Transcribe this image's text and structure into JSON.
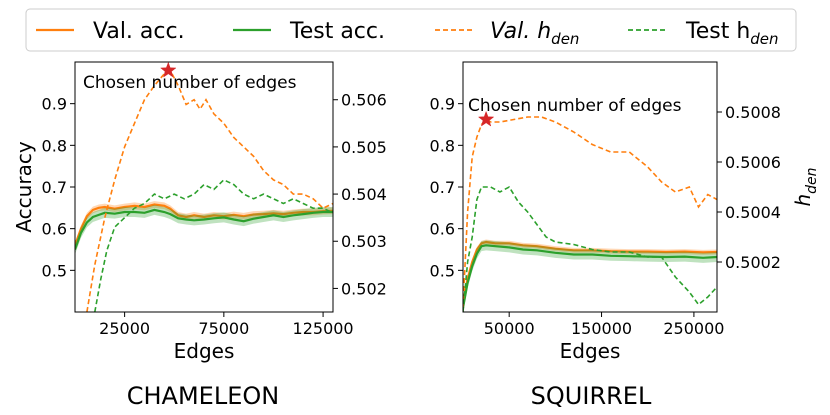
{
  "legend": {
    "items": [
      {
        "label": "Val. acc.",
        "color": "#ff7f0e",
        "dash": "solid"
      },
      {
        "label": "Test acc.",
        "color": "#2ca02c",
        "dash": "solid"
      },
      {
        "label": "Val. h",
        "sub": "den",
        "color": "#ff7f0e",
        "dash": "dashed"
      },
      {
        "label": "Test h",
        "sub": "den",
        "color": "#2ca02c",
        "dash": "dashed"
      }
    ]
  },
  "chart_data": [
    {
      "type": "line",
      "dataset_title": "CHAMELEON",
      "xlabel": "Edges",
      "ylabel": "Accuracy",
      "xlim": [
        0,
        130000
      ],
      "ylim_left": [
        0.4,
        1.0
      ],
      "ylim_right": [
        0.5015,
        0.5068
      ],
      "xticks": [
        25000,
        75000,
        125000
      ],
      "xtick_labels": [
        "25000",
        "75000",
        "125000"
      ],
      "yticks_left": [
        0.5,
        0.6,
        0.7,
        0.8,
        0.9
      ],
      "ytick_labels_left": [
        "0.5",
        "0.6",
        "0.7",
        "0.8",
        "0.9"
      ],
      "yticks_right": [
        0.502,
        0.503,
        0.504,
        0.505,
        0.506
      ],
      "ytick_labels_right": [
        "0.502",
        "0.503",
        "0.504",
        "0.505",
        "0.506"
      ],
      "annotation": "Chosen number of edges",
      "chosen_x": 47000,
      "chosen_y_right": 0.50662,
      "series": [
        {
          "name": "Val. acc.",
          "axis": "left",
          "color": "#ff7f0e",
          "style": "solid",
          "band": 0.008,
          "x": [
            0,
            3000,
            6000,
            9000,
            12000,
            15000,
            20000,
            25000,
            30000,
            35000,
            40000,
            45000,
            48000,
            52000,
            56000,
            60000,
            65000,
            70000,
            75000,
            80000,
            85000,
            90000,
            95000,
            100000,
            105000,
            110000,
            115000,
            120000,
            125000,
            130000
          ],
          "y": [
            0.56,
            0.6,
            0.63,
            0.645,
            0.65,
            0.652,
            0.648,
            0.652,
            0.655,
            0.652,
            0.658,
            0.655,
            0.648,
            0.632,
            0.628,
            0.632,
            0.628,
            0.632,
            0.63,
            0.633,
            0.63,
            0.634,
            0.635,
            0.637,
            0.635,
            0.638,
            0.64,
            0.64,
            0.642,
            0.643
          ]
        },
        {
          "name": "Test acc.",
          "axis": "left",
          "color": "#2ca02c",
          "style": "solid",
          "band": 0.012,
          "x": [
            0,
            3000,
            6000,
            9000,
            12000,
            15000,
            20000,
            25000,
            30000,
            35000,
            40000,
            45000,
            48000,
            52000,
            56000,
            60000,
            65000,
            70000,
            75000,
            80000,
            85000,
            90000,
            95000,
            100000,
            105000,
            110000,
            115000,
            120000,
            125000,
            130000
          ],
          "y": [
            0.55,
            0.59,
            0.615,
            0.628,
            0.633,
            0.638,
            0.636,
            0.64,
            0.64,
            0.638,
            0.645,
            0.64,
            0.635,
            0.625,
            0.622,
            0.62,
            0.622,
            0.625,
            0.627,
            0.622,
            0.618,
            0.624,
            0.628,
            0.632,
            0.628,
            0.632,
            0.635,
            0.638,
            0.64,
            0.64
          ]
        },
        {
          "name": "Val. h_den",
          "axis": "right",
          "color": "#ff7f0e",
          "style": "dashed",
          "x": [
            6000,
            10000,
            15000,
            20000,
            25000,
            30000,
            35000,
            40000,
            45000,
            48000,
            52000,
            56000,
            60000,
            63000,
            66000,
            70000,
            75000,
            80000,
            85000,
            90000,
            95000,
            100000,
            105000,
            110000,
            115000,
            120000,
            125000,
            130000
          ],
          "y": [
            0.5015,
            0.5025,
            0.5035,
            0.5043,
            0.505,
            0.5055,
            0.506,
            0.5063,
            0.50655,
            0.50662,
            0.5063,
            0.5059,
            0.506,
            0.5058,
            0.506,
            0.5057,
            0.5055,
            0.5052,
            0.505,
            0.5048,
            0.5045,
            0.5043,
            0.5042,
            0.504,
            0.504,
            0.5039,
            0.5037,
            0.5038
          ]
        },
        {
          "name": "Test h_den",
          "axis": "right",
          "color": "#2ca02c",
          "style": "dashed",
          "x": [
            10000,
            13000,
            16000,
            20000,
            25000,
            30000,
            35000,
            40000,
            45000,
            50000,
            55000,
            60000,
            65000,
            70000,
            75000,
            80000,
            85000,
            90000,
            95000,
            100000,
            105000,
            110000,
            115000,
            120000,
            125000,
            130000
          ],
          "y": [
            0.5015,
            0.5022,
            0.5028,
            0.5033,
            0.5035,
            0.5037,
            0.5038,
            0.504,
            0.5039,
            0.504,
            0.5039,
            0.504,
            0.5042,
            0.5041,
            0.5043,
            0.5042,
            0.504,
            0.5039,
            0.504,
            0.5039,
            0.5038,
            0.5039,
            0.5038,
            0.5037,
            0.5037,
            0.5036
          ]
        }
      ]
    },
    {
      "type": "line",
      "dataset_title": "SQUIRREL",
      "xlabel": "Edges",
      "ylabel": "h_den",
      "xlim": [
        0,
        275000
      ],
      "ylim_left": [
        0.4,
        1.0
      ],
      "ylim_right": [
        0.5,
        0.501
      ],
      "xticks": [
        50000,
        150000,
        250000
      ],
      "xtick_labels": [
        "50000",
        "150000",
        "250000"
      ],
      "yticks_left": [
        0.5,
        0.6,
        0.7,
        0.8,
        0.9
      ],
      "ytick_labels_left": [
        "0.5",
        "0.6",
        "0.7",
        "0.8",
        "0.9"
      ],
      "yticks_right": [
        0.5002,
        0.5004,
        0.5006,
        0.5008
      ],
      "ytick_labels_right": [
        "0.5002",
        "0.5004",
        "0.5006",
        "0.5008"
      ],
      "annotation": "Chosen number of edges",
      "chosen_x": 25000,
      "chosen_y_right": 0.50077,
      "series": [
        {
          "name": "Val. acc.",
          "axis": "left",
          "color": "#ff7f0e",
          "style": "solid",
          "band": 0.006,
          "x": [
            0,
            5000,
            10000,
            15000,
            20000,
            25000,
            35000,
            50000,
            65000,
            80000,
            100000,
            120000,
            140000,
            160000,
            180000,
            200000,
            220000,
            240000,
            260000,
            275000
          ],
          "y": [
            0.42,
            0.48,
            0.52,
            0.55,
            0.565,
            0.568,
            0.565,
            0.565,
            0.56,
            0.558,
            0.552,
            0.548,
            0.548,
            0.546,
            0.545,
            0.545,
            0.544,
            0.545,
            0.543,
            0.544
          ]
        },
        {
          "name": "Test acc.",
          "axis": "left",
          "color": "#2ca02c",
          "style": "solid",
          "band": 0.012,
          "x": [
            0,
            5000,
            10000,
            15000,
            20000,
            25000,
            35000,
            50000,
            65000,
            80000,
            100000,
            120000,
            140000,
            160000,
            180000,
            200000,
            220000,
            240000,
            260000,
            275000
          ],
          "y": [
            0.41,
            0.47,
            0.51,
            0.54,
            0.558,
            0.56,
            0.558,
            0.555,
            0.55,
            0.548,
            0.542,
            0.538,
            0.538,
            0.535,
            0.534,
            0.533,
            0.532,
            0.533,
            0.53,
            0.532
          ]
        },
        {
          "name": "Val. h_den",
          "axis": "right",
          "color": "#ff7f0e",
          "style": "dashed",
          "x": [
            0,
            5000,
            10000,
            15000,
            20000,
            25000,
            30000,
            40000,
            55000,
            70000,
            85000,
            100000,
            120000,
            140000,
            160000,
            180000,
            200000,
            215000,
            230000,
            245000,
            255000,
            265000,
            275000
          ],
          "y": [
            0.50002,
            0.5004,
            0.50062,
            0.5007,
            0.50075,
            0.50077,
            0.50076,
            0.50076,
            0.50077,
            0.50078,
            0.50078,
            0.50076,
            0.50072,
            0.50067,
            0.50064,
            0.50064,
            0.50058,
            0.50052,
            0.50048,
            0.5005,
            0.50042,
            0.50047,
            0.50045
          ]
        },
        {
          "name": "Test h_den",
          "axis": "right",
          "color": "#2ca02c",
          "style": "dashed",
          "x": [
            0,
            5000,
            10000,
            15000,
            20000,
            30000,
            40000,
            50000,
            60000,
            70000,
            80000,
            90000,
            100000,
            120000,
            140000,
            160000,
            180000,
            200000,
            215000,
            230000,
            245000,
            255000,
            265000,
            275000
          ],
          "y": [
            0.5,
            0.5002,
            0.5003,
            0.50045,
            0.5005,
            0.5005,
            0.50048,
            0.5005,
            0.50044,
            0.5004,
            0.50035,
            0.5003,
            0.50028,
            0.50027,
            0.50025,
            0.50024,
            0.50024,
            0.50022,
            0.50022,
            0.50014,
            0.50008,
            0.50003,
            0.50006,
            0.5001
          ]
        }
      ]
    }
  ]
}
